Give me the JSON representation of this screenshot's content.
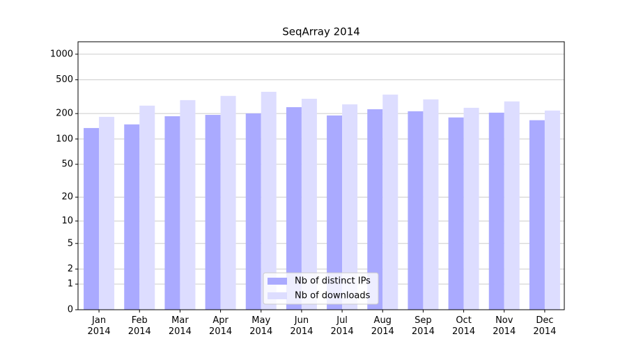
{
  "chart_data": {
    "type": "bar",
    "title": "SeqArray 2014",
    "scale": "log1p",
    "categories": [
      "Jan\n2014",
      "Feb\n2014",
      "Mar\n2014",
      "Apr\n2014",
      "May\n2014",
      "Jun\n2014",
      "Jul\n2014",
      "Aug\n2014",
      "Sep\n2014",
      "Oct\n2014",
      "Nov\n2014",
      "Dec\n2014"
    ],
    "series": [
      {
        "name": "Nb of distinct IPs",
        "color": "#aaaaff",
        "values": [
          135,
          149,
          186,
          193,
          201,
          238,
          190,
          225,
          213,
          180,
          205,
          167
        ]
      },
      {
        "name": "Nb of downloads",
        "color": "#ddddff",
        "values": [
          183,
          248,
          288,
          323,
          361,
          299,
          257,
          335,
          294,
          234,
          278,
          217
        ]
      }
    ],
    "ylim": [
      0,
      1400
    ],
    "yticks": [
      0,
      1,
      2,
      5,
      10,
      20,
      50,
      100,
      200,
      500,
      1000
    ],
    "grid": true,
    "legend": "lower center"
  }
}
